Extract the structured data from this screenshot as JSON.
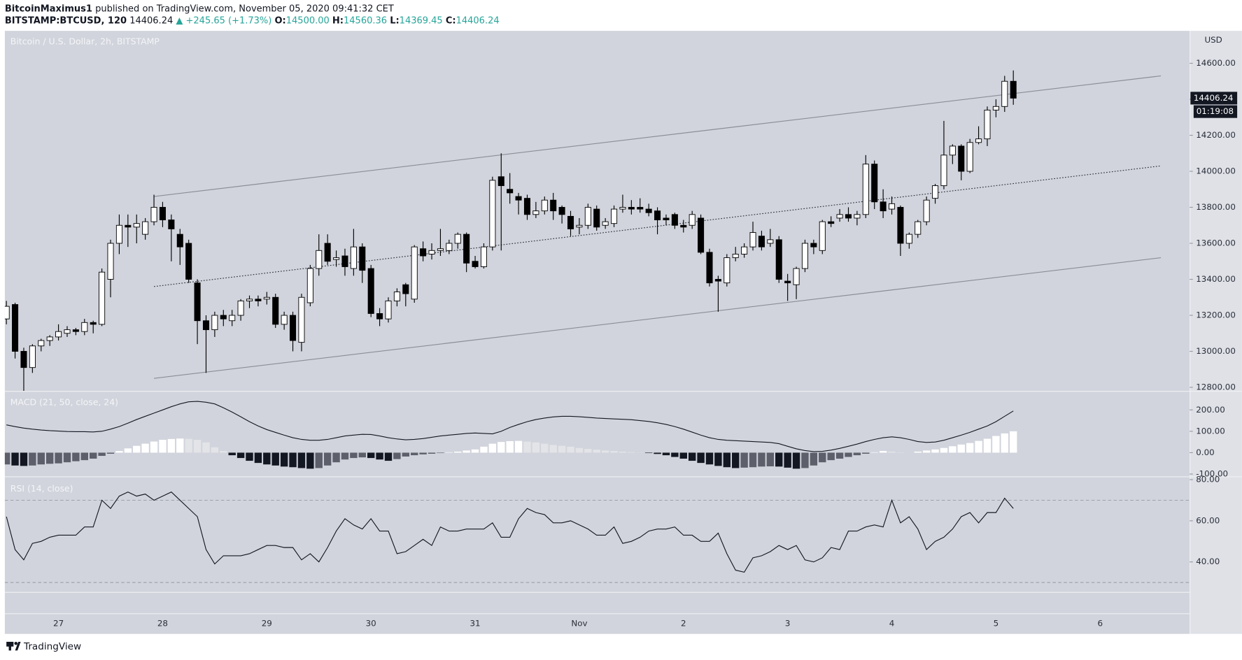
{
  "header": {
    "author": "BitcoinMaximus1",
    "published": "published on TradingView.com, November 05, 2020 09:41:32 CET",
    "symbol": "BITSTAMP:BTCUSD, 120",
    "last": "14406.24",
    "change": "▲ +245.65 (+1.73%)",
    "o_label": "O:",
    "o": "14500.00",
    "h_label": "H:",
    "h": "14560.36",
    "l_label": "L:",
    "l": "14369.45",
    "c_label": "C:",
    "c": "14406.24"
  },
  "footer": {
    "brand": "TradingView"
  },
  "chart_data": [
    {
      "type": "candlestick",
      "title": "Bitcoin / U.S. Dollar, 2h, BITSTAMP",
      "currency": "USD",
      "countdown": "01:19:08",
      "grid": false,
      "up_color": "#ffffff",
      "down_color": "#000000",
      "wick_color": "#000000",
      "categories": [
        null,
        null,
        null,
        null,
        null,
        null,
        "27",
        null,
        null,
        null,
        null,
        null,
        null,
        null,
        null,
        null,
        null,
        null,
        "28",
        null,
        null,
        null,
        null,
        null,
        null,
        null,
        null,
        null,
        null,
        null,
        "29",
        null,
        null,
        null,
        null,
        null,
        null,
        null,
        null,
        null,
        null,
        null,
        "30",
        null,
        null,
        null,
        null,
        null,
        null,
        null,
        null,
        null,
        null,
        null,
        "31",
        null,
        null,
        null,
        null,
        null,
        null,
        null,
        null,
        null,
        null,
        null,
        "Nov",
        null,
        null,
        null,
        null,
        null,
        null,
        null,
        null,
        null,
        null,
        null,
        "2",
        null,
        null,
        null,
        null,
        null,
        null,
        null,
        null,
        null,
        null,
        null,
        "3",
        null,
        null,
        null,
        null,
        null,
        null,
        null,
        null,
        null,
        null,
        null,
        "4",
        null,
        null,
        null,
        null,
        null,
        null,
        null,
        null,
        null,
        null,
        null,
        "5",
        null,
        null,
        null,
        null,
        null,
        null,
        null,
        null,
        null,
        null,
        null,
        "6",
        null,
        null,
        null,
        null,
        null,
        null,
        null,
        null,
        null
      ],
      "open": [
        13180,
        13260,
        13000,
        12910,
        13030,
        13060,
        13080,
        13100,
        13120,
        13110,
        13160,
        13150,
        13400,
        13600,
        13700,
        13690,
        13650,
        13720,
        13800,
        13730,
        13650,
        13600,
        13380,
        13170,
        13120,
        13200,
        13170,
        13200,
        13280,
        13290,
        13290,
        13300,
        13150,
        13200,
        13050,
        13270,
        13460,
        13600,
        13510,
        13530,
        13460,
        13580,
        13460,
        13210,
        13180,
        13280,
        13370,
        13290,
        13570,
        13540,
        13560,
        13560,
        13600,
        13650,
        13500,
        13470,
        13580,
        13970,
        13900,
        13860,
        13850,
        13760,
        13780,
        13840,
        13800,
        13750,
        13690,
        13700,
        13790,
        13700,
        13710,
        13790,
        13800,
        13800,
        13790,
        13780,
        13740,
        13760,
        13700,
        13700,
        13740,
        13550,
        13400,
        13380,
        13520,
        13540,
        13580,
        13640,
        13600,
        13620,
        13390,
        13370,
        13460,
        13600,
        13560,
        13720,
        13740,
        13760,
        13740,
        13760,
        14040,
        13830,
        13790,
        13800,
        13600,
        13650,
        13720,
        13850,
        13920,
        14090,
        14140,
        14000,
        14160,
        14180,
        14340,
        14360,
        14500,
        null,
        null,
        null,
        null,
        null,
        null,
        null,
        null,
        null,
        null,
        null,
        null,
        null,
        null,
        null,
        null,
        null,
        null,
        null
      ],
      "high": [
        13280,
        13270,
        13020,
        13040,
        13070,
        13090,
        13150,
        13140,
        13130,
        13180,
        13170,
        13460,
        13620,
        13760,
        13760,
        13760,
        13740,
        13870,
        13830,
        13760,
        13680,
        13620,
        13400,
        13200,
        13220,
        13230,
        13230,
        13290,
        13310,
        13310,
        13330,
        13320,
        13220,
        13220,
        13320,
        13480,
        13650,
        13650,
        13560,
        13570,
        13680,
        13600,
        13480,
        13240,
        13300,
        13350,
        13380,
        13590,
        13610,
        13600,
        13680,
        13620,
        13660,
        13660,
        13530,
        13600,
        13970,
        14100,
        13990,
        13880,
        13870,
        13830,
        13860,
        13880,
        13810,
        13780,
        13740,
        13820,
        13810,
        13740,
        13810,
        13870,
        13840,
        13850,
        13820,
        13800,
        13760,
        13770,
        13730,
        13780,
        13760,
        13570,
        13420,
        13540,
        13580,
        13600,
        13720,
        13670,
        13680,
        13640,
        13430,
        13470,
        13620,
        13620,
        13730,
        13750,
        13790,
        13800,
        13780,
        14090,
        14060,
        13900,
        13860,
        13810,
        13660,
        13730,
        13860,
        13930,
        14280,
        14150,
        14150,
        14180,
        14250,
        14360,
        14400,
        14530,
        14560.36,
        null,
        null,
        null,
        null,
        null,
        null,
        null,
        null,
        null,
        null,
        null,
        null,
        null,
        null,
        null,
        null,
        null,
        null,
        null
      ],
      "low": [
        13150,
        12960,
        12780,
        12880,
        13000,
        13030,
        13060,
        13080,
        13090,
        13090,
        13100,
        13140,
        13300,
        13540,
        13580,
        13600,
        13620,
        13700,
        13690,
        13500,
        13480,
        13380,
        13040,
        12880,
        13080,
        13140,
        13140,
        13170,
        13240,
        13250,
        13260,
        13130,
        13120,
        13000,
        13000,
        13250,
        13420,
        13480,
        13470,
        13420,
        13420,
        13380,
        13190,
        13140,
        13160,
        13250,
        13250,
        13270,
        13500,
        13510,
        13530,
        13540,
        13570,
        13440,
        13460,
        13460,
        13560,
        13560,
        13820,
        13760,
        13730,
        13740,
        13760,
        13730,
        13710,
        13640,
        13650,
        13680,
        13670,
        13680,
        13690,
        13770,
        13760,
        13770,
        13750,
        13650,
        13700,
        13680,
        13660,
        13680,
        13540,
        13360,
        13220,
        13360,
        13500,
        13520,
        13560,
        13560,
        13580,
        13380,
        13280,
        13290,
        13440,
        13540,
        13540,
        13690,
        13720,
        13720,
        13700,
        13740,
        13790,
        13740,
        13760,
        13530,
        13570,
        13630,
        13700,
        13820,
        13900,
        14040,
        13950,
        13990,
        14150,
        14140,
        14300,
        14330,
        14369.45,
        null,
        null,
        null,
        null,
        null,
        null,
        null,
        null,
        null,
        null,
        null,
        null,
        null,
        null,
        null,
        null,
        null,
        null,
        null
      ],
      "close": [
        13250,
        13000,
        12910,
        13030,
        13060,
        13080,
        13110,
        13120,
        13110,
        13160,
        13150,
        13440,
        13600,
        13700,
        13690,
        13710,
        13720,
        13800,
        13730,
        13680,
        13580,
        13400,
        13170,
        13120,
        13200,
        13180,
        13200,
        13280,
        13290,
        13280,
        13300,
        13150,
        13200,
        13060,
        13300,
        13460,
        13560,
        13500,
        13520,
        13470,
        13580,
        13450,
        13210,
        13180,
        13280,
        13330,
        13320,
        13580,
        13530,
        13560,
        13570,
        13600,
        13650,
        13490,
        13470,
        13580,
        13950,
        13920,
        13880,
        13840,
        13760,
        13780,
        13840,
        13780,
        13760,
        13680,
        13700,
        13800,
        13690,
        13720,
        13790,
        13800,
        13790,
        13790,
        13770,
        13730,
        13730,
        13700,
        13690,
        13760,
        13550,
        13380,
        13390,
        13520,
        13540,
        13580,
        13660,
        13580,
        13620,
        13400,
        13380,
        13460,
        13600,
        13580,
        13720,
        13710,
        13760,
        13740,
        13760,
        14040,
        13830,
        13780,
        13820,
        13600,
        13650,
        13720,
        13840,
        13920,
        14090,
        14140,
        14000,
        14160,
        14180,
        14340,
        14360,
        14500,
        14406.24,
        null,
        null,
        null,
        null,
        null,
        null,
        null,
        null,
        null,
        null,
        null,
        null,
        null,
        null,
        null,
        null,
        null,
        null,
        null
      ],
      "ylim": [
        12780,
        14780
      ],
      "yticks": [
        {
          "value": 12800,
          "label": "12800.00"
        },
        {
          "value": 13000,
          "label": "13000.00"
        },
        {
          "value": 13200,
          "label": "13200.00"
        },
        {
          "value": 13400,
          "label": "13400.00"
        },
        {
          "value": 13600,
          "label": "13600.00"
        },
        {
          "value": 13800,
          "label": "13800.00"
        },
        {
          "value": 14000,
          "label": "14000.00"
        },
        {
          "value": 14200,
          "label": "14200.00"
        },
        {
          "value": 14400,
          "label": "14400.00"
        },
        {
          "value": 14600,
          "label": "14600.00"
        }
      ],
      "channel": [
        {
          "style": "solid",
          "color": "#8a8d96",
          "x": [
            17,
            133
          ],
          "y": [
            13860,
            14530
          ]
        },
        {
          "style": "dotted",
          "color": "#2a2e39",
          "x": [
            17,
            133
          ],
          "y": [
            13360,
            14030
          ]
        },
        {
          "style": "solid",
          "color": "#8a8d96",
          "x": [
            17,
            133
          ],
          "y": [
            12850,
            13520
          ]
        }
      ]
    },
    {
      "type": "macd",
      "title": "MACD (21, 50, close, 24)",
      "line": {
        "color": "#131722",
        "values": [
          130,
          122,
          115,
          110,
          106,
          103,
          101,
          99,
          98,
          98,
          97,
          100,
          110,
          122,
          138,
          155,
          170,
          185,
          200,
          215,
          228,
          238,
          240,
          236,
          228,
          210,
          190,
          168,
          145,
          125,
          108,
          95,
          82,
          70,
          62,
          58,
          58,
          62,
          70,
          78,
          82,
          86,
          85,
          78,
          70,
          64,
          60,
          62,
          66,
          72,
          78,
          82,
          86,
          90,
          92,
          90,
          88,
          100,
          118,
          132,
          145,
          155,
          162,
          167,
          170,
          170,
          168,
          165,
          162,
          160,
          158,
          156,
          154,
          150,
          146,
          140,
          132,
          122,
          110,
          96,
          82,
          70,
          62,
          58,
          56,
          54,
          52,
          50,
          48,
          42,
          30,
          18,
          10,
          5,
          6,
          12,
          20,
          30,
          40,
          52,
          62,
          70,
          74,
          70,
          62,
          52,
          48,
          50,
          58,
          70,
          82,
          95,
          110,
          125,
          145,
          170,
          195,
          null,
          null,
          null,
          null,
          null,
          null,
          null,
          null,
          null,
          null,
          null,
          null,
          null,
          null,
          null,
          null,
          null,
          null,
          null
        ]
      },
      "histogram": {
        "colors": {
          "positive_rising": "#ffffff",
          "positive_falling": "#e3e4e8",
          "negative_falling": "#131722",
          "negative_rising": "#5d606b"
        },
        "values": [
          -55,
          -60,
          -62,
          -60,
          -55,
          -52,
          -50,
          -45,
          -40,
          -35,
          -28,
          -15,
          -5,
          8,
          20,
          32,
          42,
          52,
          60,
          64,
          66,
          65,
          60,
          48,
          25,
          8,
          -12,
          -25,
          -38,
          -48,
          -55,
          -60,
          -65,
          -68,
          -72,
          -75,
          -72,
          -60,
          -45,
          -32,
          -25,
          -22,
          -25,
          -32,
          -38,
          -30,
          -18,
          -12,
          -8,
          -5,
          -2,
          2,
          5,
          10,
          15,
          28,
          42,
          50,
          54,
          55,
          52,
          48,
          42,
          36,
          32,
          28,
          22,
          18,
          14,
          10,
          8,
          5,
          3,
          1,
          -2,
          -6,
          -12,
          -20,
          -28,
          -38,
          -48,
          -55,
          -62,
          -68,
          -72,
          -70,
          -68,
          -65,
          -64,
          -65,
          -70,
          -75,
          -72,
          -60,
          -45,
          -35,
          -28,
          -20,
          -12,
          -5,
          2,
          8,
          5,
          2,
          0,
          5,
          10,
          15,
          22,
          30,
          38,
          45,
          55,
          65,
          78,
          90,
          100,
          null,
          null,
          null,
          null,
          null,
          null,
          null,
          null,
          null,
          null,
          null,
          null,
          null,
          null,
          null,
          null,
          null,
          null,
          null
        ]
      },
      "ylim": [
        -111,
        285
      ],
      "yticks": [
        {
          "value": -100,
          "label": "-100.00"
        },
        {
          "value": 0,
          "label": "0.00"
        },
        {
          "value": 100,
          "label": "100.00"
        },
        {
          "value": 200,
          "label": "200.00"
        }
      ]
    },
    {
      "type": "rsi",
      "title": "RSI (14, close)",
      "color": "#131722",
      "level_color": "#9598a1",
      "levels": [
        70,
        30
      ],
      "values": [
        62,
        46,
        41,
        49,
        50,
        52,
        53,
        53,
        53,
        57,
        57,
        70,
        66,
        72,
        74,
        72,
        73,
        70,
        72,
        74,
        70,
        66,
        62,
        46,
        39,
        43,
        43,
        43,
        44,
        46,
        48,
        48,
        47,
        47,
        41,
        44,
        40,
        47,
        55,
        61,
        58,
        56,
        61,
        55,
        55,
        44,
        45,
        48,
        51,
        48,
        57,
        55,
        55,
        56,
        56,
        56,
        59,
        52,
        52,
        61,
        66,
        64,
        63,
        59,
        59,
        60,
        58,
        56,
        53,
        53,
        57,
        49,
        50,
        52,
        55,
        56,
        56,
        57,
        53,
        53,
        50,
        50,
        54,
        44,
        36,
        35,
        42,
        43,
        45,
        48,
        46,
        48,
        41,
        40,
        42,
        47,
        46,
        55,
        55,
        57,
        58,
        57,
        70,
        59,
        62,
        56,
        46,
        50,
        52,
        56,
        62,
        64,
        59,
        64,
        64,
        71,
        66,
        null,
        null,
        null,
        null,
        null,
        null,
        null,
        null,
        null,
        null,
        null,
        null,
        null,
        null,
        null,
        null,
        null,
        null,
        null
      ],
      "ylim": [
        25.4,
        81.2
      ],
      "yticks": [
        {
          "value": 40,
          "label": "40.00"
        },
        {
          "value": 60,
          "label": "60.00"
        },
        {
          "value": 80,
          "label": "80.00"
        }
      ]
    }
  ]
}
